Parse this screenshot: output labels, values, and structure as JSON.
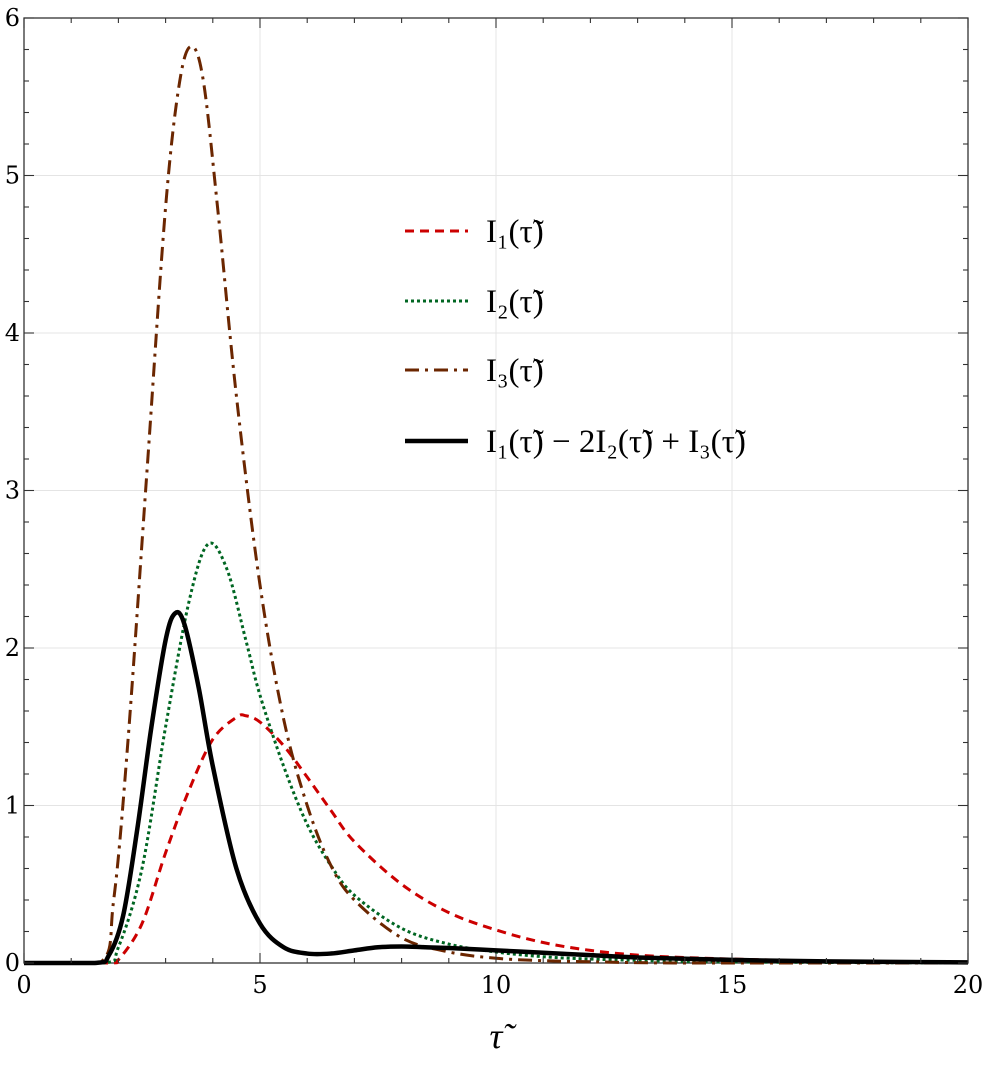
{
  "chart_data": {
    "type": "line",
    "xlabel": "τ̃",
    "ylabel": "",
    "xlim": [
      0,
      20
    ],
    "ylim": [
      0,
      6
    ],
    "x_ticks": [
      "0",
      "5",
      "10",
      "15",
      "20"
    ],
    "y_ticks": [
      "0",
      "1",
      "2",
      "3",
      "4",
      "5",
      "6"
    ],
    "grid": true,
    "legend_position": "upper-middle-right",
    "series": [
      {
        "name": "I₁(τ̃)",
        "color": "#cc0000",
        "style": "dashed",
        "x": [
          0,
          1.8,
          2.0,
          2.5,
          3.0,
          3.5,
          4.0,
          4.5,
          4.7,
          5.0,
          5.5,
          6.0,
          6.5,
          7.0,
          8.0,
          9.0,
          10.0,
          11.0,
          12.0,
          13.0,
          14.0,
          15.0,
          17.0,
          20.0
        ],
        "y": [
          0,
          0,
          0.02,
          0.25,
          0.7,
          1.1,
          1.42,
          1.56,
          1.57,
          1.53,
          1.38,
          1.18,
          0.97,
          0.77,
          0.5,
          0.32,
          0.21,
          0.13,
          0.08,
          0.05,
          0.035,
          0.025,
          0.012,
          0.005
        ]
      },
      {
        "name": "I₂(τ̃)",
        "color": "#006622",
        "style": "dotted",
        "x": [
          0,
          1.7,
          2.0,
          2.5,
          3.0,
          3.5,
          3.9,
          4.3,
          4.7,
          5.0,
          5.5,
          6.0,
          6.5,
          7.0,
          8.0,
          9.0,
          10.0,
          11.0,
          12.0,
          14.0,
          16.0,
          20.0
        ],
        "y": [
          0,
          0,
          0.1,
          0.6,
          1.5,
          2.3,
          2.66,
          2.5,
          2.05,
          1.7,
          1.25,
          0.88,
          0.62,
          0.43,
          0.22,
          0.12,
          0.07,
          0.04,
          0.025,
          0.01,
          0.005,
          0.0
        ]
      },
      {
        "name": "I₃(τ̃)",
        "color": "#6b2600",
        "style": "dashdot",
        "x": [
          0,
          1.6,
          1.9,
          2.2,
          2.6,
          3.0,
          3.3,
          3.55,
          3.8,
          4.1,
          4.5,
          5.0,
          5.5,
          6.0,
          6.5,
          7.0,
          8.0,
          9.0,
          10.0,
          11.0,
          12.0,
          14.0,
          20.0
        ],
        "y": [
          0,
          0,
          0.4,
          1.4,
          3.1,
          4.8,
          5.6,
          5.82,
          5.6,
          4.8,
          3.6,
          2.4,
          1.55,
          1.0,
          0.62,
          0.4,
          0.16,
          0.07,
          0.03,
          0.015,
          0.008,
          0.0,
          0.0
        ]
      },
      {
        "name": "I₁(τ̃) − 2I₂(τ̃) + I₃(τ̃)",
        "color": "#000000",
        "style": "solid",
        "x": [
          0,
          1.5,
          1.8,
          2.1,
          2.4,
          2.7,
          3.0,
          3.2,
          3.4,
          3.7,
          4.0,
          4.5,
          5.0,
          5.5,
          6.0,
          6.5,
          7.0,
          7.5,
          8.0,
          8.5,
          9.0,
          10.0,
          11.0,
          12.0,
          13.0,
          15.0,
          17.0,
          20.0
        ],
        "y": [
          0,
          0,
          0.05,
          0.3,
          0.85,
          1.5,
          2.05,
          2.22,
          2.15,
          1.75,
          1.25,
          0.6,
          0.25,
          0.1,
          0.06,
          0.06,
          0.08,
          0.1,
          0.105,
          0.1,
          0.095,
          0.08,
          0.065,
          0.05,
          0.035,
          0.02,
          0.01,
          0.004
        ]
      }
    ]
  }
}
